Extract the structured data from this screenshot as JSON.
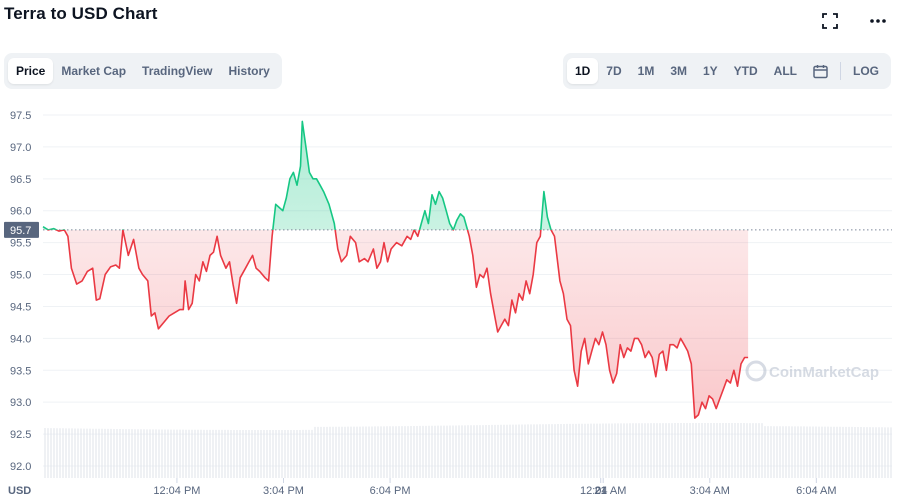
{
  "header": {
    "title": "Terra to USD Chart"
  },
  "tabs": [
    {
      "label": "Price",
      "active": true
    },
    {
      "label": "Market Cap",
      "active": false
    },
    {
      "label": "TradingView",
      "active": false
    },
    {
      "label": "History",
      "active": false
    }
  ],
  "ranges": [
    {
      "label": "1D",
      "active": true
    },
    {
      "label": "7D",
      "active": false
    },
    {
      "label": "1M",
      "active": false
    },
    {
      "label": "3M",
      "active": false
    },
    {
      "label": "1Y",
      "active": false
    },
    {
      "label": "YTD",
      "active": false
    },
    {
      "label": "ALL",
      "active": false
    }
  ],
  "log_label": "LOG",
  "icons": {
    "fullscreen": "fullscreen-icon",
    "more": "more-icon",
    "calendar": "calendar-icon"
  },
  "colors": {
    "up": "#16c784",
    "down": "#ea3943",
    "text": "#58667e",
    "grid": "#eff2f5"
  },
  "watermark": "CoinMarketCap",
  "chart_data": {
    "type": "area",
    "currency_label": "USD",
    "reference_value": 95.7,
    "reference_label": "95.7",
    "y_ticks": [
      "97.5",
      "97.0",
      "96.5",
      "96.0",
      "95.5",
      "95.0",
      "94.5",
      "94.0",
      "93.5",
      "93.0",
      "92.5",
      "92.0"
    ],
    "ylim": [
      92.0,
      97.5
    ],
    "x_ticks": [
      {
        "label": "12:04 PM",
        "t": 12.07
      },
      {
        "label": "3:04 PM",
        "t": 15.07
      },
      {
        "label": "6:04 PM",
        "t": 18.07
      },
      {
        "label": "21",
        "t": 24.0
      },
      {
        "label": "12:04 AM",
        "t": 24.07
      },
      {
        "label": "3:04 AM",
        "t": 27.07
      },
      {
        "label": "6:04 AM",
        "t": 30.07
      }
    ],
    "xlim": [
      8.3,
      32.2
    ],
    "grid": true,
    "series": [
      {
        "points": [
          [
            8.3,
            95.75
          ],
          [
            8.45,
            95.7
          ],
          [
            8.6,
            95.72
          ],
          [
            8.75,
            95.68
          ],
          [
            8.9,
            95.7
          ],
          [
            9.0,
            95.6
          ],
          [
            9.1,
            95.1
          ],
          [
            9.25,
            94.85
          ],
          [
            9.4,
            94.9
          ],
          [
            9.55,
            95.05
          ],
          [
            9.7,
            95.1
          ],
          [
            9.8,
            94.6
          ],
          [
            9.9,
            94.62
          ],
          [
            10.05,
            95.0
          ],
          [
            10.2,
            95.12
          ],
          [
            10.35,
            95.15
          ],
          [
            10.45,
            95.1
          ],
          [
            10.55,
            95.7
          ],
          [
            10.7,
            95.3
          ],
          [
            10.85,
            95.55
          ],
          [
            11.0,
            95.1
          ],
          [
            11.1,
            95.0
          ],
          [
            11.25,
            94.9
          ],
          [
            11.35,
            94.35
          ],
          [
            11.45,
            94.4
          ],
          [
            11.55,
            94.15
          ],
          [
            11.7,
            94.25
          ],
          [
            11.85,
            94.35
          ],
          [
            12.0,
            94.4
          ],
          [
            12.15,
            94.45
          ],
          [
            12.25,
            94.45
          ],
          [
            12.3,
            94.9
          ],
          [
            12.4,
            94.45
          ],
          [
            12.5,
            94.55
          ],
          [
            12.6,
            95.0
          ],
          [
            12.7,
            94.9
          ],
          [
            12.8,
            95.2
          ],
          [
            12.9,
            95.05
          ],
          [
            13.0,
            95.3
          ],
          [
            13.1,
            95.35
          ],
          [
            13.2,
            95.6
          ],
          [
            13.3,
            95.3
          ],
          [
            13.45,
            95.1
          ],
          [
            13.55,
            95.2
          ],
          [
            13.65,
            94.85
          ],
          [
            13.75,
            94.55
          ],
          [
            13.85,
            94.95
          ],
          [
            14.0,
            95.1
          ],
          [
            14.1,
            95.2
          ],
          [
            14.2,
            95.3
          ],
          [
            14.3,
            95.1
          ],
          [
            14.4,
            95.05
          ],
          [
            14.55,
            94.95
          ],
          [
            14.65,
            94.9
          ],
          [
            14.75,
            95.6
          ],
          [
            14.85,
            96.1
          ],
          [
            14.95,
            96.05
          ],
          [
            15.05,
            96.0
          ],
          [
            15.15,
            96.2
          ],
          [
            15.25,
            96.5
          ],
          [
            15.35,
            96.6
          ],
          [
            15.45,
            96.4
          ],
          [
            15.55,
            96.7
          ],
          [
            15.6,
            97.4
          ],
          [
            15.7,
            97.0
          ],
          [
            15.8,
            96.6
          ],
          [
            15.9,
            96.5
          ],
          [
            16.0,
            96.5
          ],
          [
            16.1,
            96.4
          ],
          [
            16.2,
            96.3
          ],
          [
            16.35,
            96.1
          ],
          [
            16.5,
            95.8
          ],
          [
            16.6,
            95.4
          ],
          [
            16.7,
            95.2
          ],
          [
            16.85,
            95.3
          ],
          [
            16.95,
            95.6
          ],
          [
            17.1,
            95.5
          ],
          [
            17.2,
            95.2
          ],
          [
            17.35,
            95.25
          ],
          [
            17.45,
            95.2
          ],
          [
            17.6,
            95.4
          ],
          [
            17.7,
            95.1
          ],
          [
            17.8,
            95.2
          ],
          [
            17.9,
            95.5
          ],
          [
            18.0,
            95.2
          ],
          [
            18.1,
            95.4
          ],
          [
            18.25,
            95.5
          ],
          [
            18.4,
            95.45
          ],
          [
            18.55,
            95.6
          ],
          [
            18.65,
            95.55
          ],
          [
            18.75,
            95.7
          ],
          [
            18.85,
            95.6
          ],
          [
            18.95,
            95.8
          ],
          [
            19.05,
            96.0
          ],
          [
            19.15,
            95.8
          ],
          [
            19.25,
            96.25
          ],
          [
            19.35,
            96.1
          ],
          [
            19.45,
            96.3
          ],
          [
            19.55,
            96.2
          ],
          [
            19.65,
            96.0
          ],
          [
            19.75,
            95.8
          ],
          [
            19.85,
            95.7
          ],
          [
            19.95,
            95.85
          ],
          [
            20.05,
            95.95
          ],
          [
            20.15,
            95.9
          ],
          [
            20.3,
            95.6
          ],
          [
            20.4,
            95.3
          ],
          [
            20.5,
            94.8
          ],
          [
            20.6,
            95.0
          ],
          [
            20.7,
            94.95
          ],
          [
            20.8,
            95.1
          ],
          [
            20.9,
            94.7
          ],
          [
            21.0,
            94.4
          ],
          [
            21.1,
            94.1
          ],
          [
            21.2,
            94.2
          ],
          [
            21.3,
            94.3
          ],
          [
            21.4,
            94.2
          ],
          [
            21.5,
            94.6
          ],
          [
            21.6,
            94.4
          ],
          [
            21.7,
            94.7
          ],
          [
            21.8,
            94.6
          ],
          [
            21.9,
            94.9
          ],
          [
            22.0,
            94.7
          ],
          [
            22.1,
            95.0
          ],
          [
            22.2,
            95.5
          ],
          [
            22.3,
            95.6
          ],
          [
            22.4,
            96.3
          ],
          [
            22.5,
            95.9
          ],
          [
            22.6,
            95.7
          ],
          [
            22.7,
            95.6
          ],
          [
            22.85,
            94.9
          ],
          [
            22.95,
            94.7
          ],
          [
            23.05,
            94.3
          ],
          [
            23.15,
            94.2
          ],
          [
            23.25,
            93.5
          ],
          [
            23.35,
            93.25
          ],
          [
            23.45,
            93.8
          ],
          [
            23.55,
            94.0
          ],
          [
            23.65,
            93.6
          ],
          [
            23.75,
            93.8
          ],
          [
            23.85,
            94.0
          ],
          [
            23.95,
            93.9
          ],
          [
            24.05,
            94.1
          ],
          [
            24.15,
            93.9
          ],
          [
            24.25,
            93.5
          ],
          [
            24.35,
            93.3
          ],
          [
            24.45,
            93.45
          ],
          [
            24.55,
            93.9
          ],
          [
            24.65,
            93.7
          ],
          [
            24.75,
            93.85
          ],
          [
            24.85,
            93.8
          ],
          [
            24.95,
            94.0
          ],
          [
            25.05,
            94.0
          ],
          [
            25.15,
            93.9
          ],
          [
            25.25,
            93.7
          ],
          [
            25.35,
            93.8
          ],
          [
            25.45,
            93.7
          ],
          [
            25.55,
            93.4
          ],
          [
            25.65,
            93.75
          ],
          [
            25.75,
            93.8
          ],
          [
            25.85,
            93.5
          ],
          [
            25.95,
            93.9
          ],
          [
            26.05,
            93.9
          ],
          [
            26.15,
            93.85
          ],
          [
            26.25,
            94.0
          ],
          [
            26.35,
            93.9
          ],
          [
            26.45,
            93.8
          ],
          [
            26.55,
            93.6
          ],
          [
            26.65,
            92.75
          ],
          [
            26.75,
            92.8
          ],
          [
            26.85,
            93.0
          ],
          [
            26.95,
            92.9
          ],
          [
            27.05,
            93.1
          ],
          [
            27.15,
            93.05
          ],
          [
            27.25,
            92.9
          ],
          [
            27.35,
            93.05
          ],
          [
            27.45,
            93.2
          ],
          [
            27.55,
            93.35
          ],
          [
            27.65,
            93.3
          ],
          [
            27.75,
            93.5
          ],
          [
            27.85,
            93.25
          ],
          [
            27.95,
            93.6
          ],
          [
            28.05,
            93.7
          ],
          [
            28.15,
            93.7
          ]
        ]
      }
    ]
  }
}
